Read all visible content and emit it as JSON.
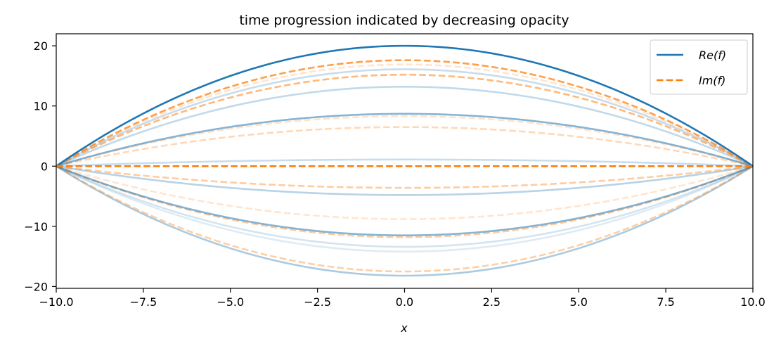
{
  "chart_data": {
    "type": "line",
    "title": "time progression indicated by decreasing opacity",
    "xlabel": "x",
    "ylabel": "",
    "xlim": [
      -10,
      10
    ],
    "ylim": [
      -20.3,
      22
    ],
    "xticks": [
      -10,
      -7.5,
      -5,
      -2.5,
      0,
      2.5,
      5,
      7.5,
      10
    ],
    "xtick_labels": [
      "−10.0",
      "−7.5",
      "−5.0",
      "−2.5",
      "0.0",
      "2.5",
      "5.0",
      "7.5",
      "10.0"
    ],
    "yticks": [
      -20,
      -10,
      0,
      10,
      20
    ],
    "ytick_labels": [
      "−20",
      "−10",
      "0",
      "10",
      "20"
    ],
    "curve_shape": "peak * (1 - (x/10)^2)",
    "x": [
      -10,
      -7.5,
      -5,
      -2.5,
      0,
      2.5,
      5,
      7.5,
      10
    ],
    "legend_position": "top-right",
    "grid": false,
    "colors": {
      "re": "#1f77b4",
      "im": "#ff7f0e"
    },
    "series": [
      {
        "name": "Re(f)",
        "legend_label": "Re(f)",
        "style": "solid",
        "color": "#1f77b4",
        "frames": [
          {
            "peak": 20.0,
            "opacity": 1.0
          },
          {
            "peak": 16.1,
            "opacity": 0.25
          },
          {
            "peak": 13.2,
            "opacity": 0.28
          },
          {
            "peak": 8.7,
            "opacity": 0.55
          },
          {
            "peak": 1.1,
            "opacity": 0.25
          },
          {
            "peak": -4.8,
            "opacity": 0.32
          },
          {
            "peak": -11.5,
            "opacity": 0.55
          },
          {
            "peak": -13.4,
            "opacity": 0.2
          },
          {
            "peak": -14.2,
            "opacity": 0.15
          },
          {
            "peak": -18.2,
            "opacity": 0.38
          }
        ]
      },
      {
        "name": "Im(f)",
        "legend_label": "Im(f)",
        "style": "dashed",
        "color": "#ff7f0e",
        "frames": [
          {
            "peak": 0.0,
            "opacity": 1.0
          },
          {
            "peak": 17.6,
            "opacity": 0.75
          },
          {
            "peak": 16.9,
            "opacity": 0.2
          },
          {
            "peak": 15.2,
            "opacity": 0.55
          },
          {
            "peak": 8.3,
            "opacity": 0.22
          },
          {
            "peak": 6.5,
            "opacity": 0.3
          },
          {
            "peak": -3.6,
            "opacity": 0.4
          },
          {
            "peak": -8.8,
            "opacity": 0.2
          },
          {
            "peak": -11.8,
            "opacity": 0.4
          },
          {
            "peak": -17.5,
            "opacity": 0.38
          }
        ]
      }
    ]
  }
}
